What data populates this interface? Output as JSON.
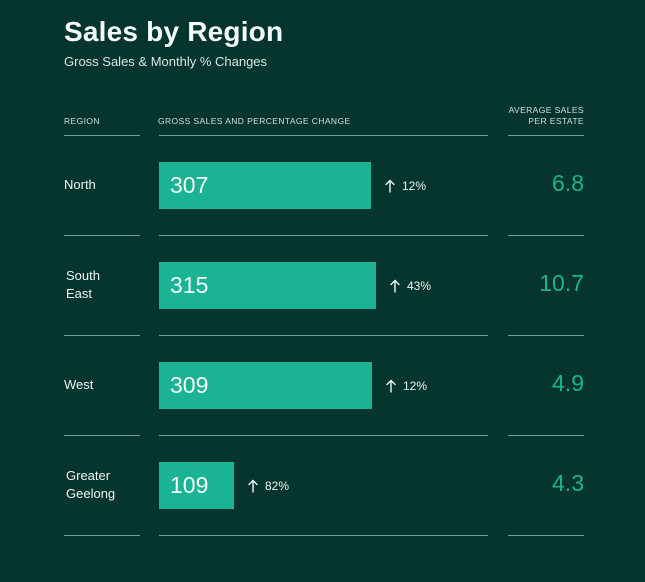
{
  "title": "Sales by Region",
  "subtitle": "Gross Sales & Monthly % Changes",
  "headers": {
    "region": "REGION",
    "gross": "GROSS SALES AND PERCENTAGE CHANGE",
    "avg_line1": "AVERAGE SALES",
    "avg_line2": "PER ESTATE"
  },
  "colors": {
    "background": "#06342f",
    "bar": "#1ab394",
    "accent_text": "#1ab394"
  },
  "icons": {
    "change": "arrow-up-icon"
  },
  "chart_data": {
    "type": "bar",
    "title": "Sales by Region",
    "subtitle": "Gross Sales & Monthly % Changes",
    "orientation": "horizontal",
    "xlim": [
      0,
      400
    ],
    "categories": [
      {
        "line1": "North",
        "line2": ""
      },
      {
        "line1": "South",
        "line2": "East"
      },
      {
        "line1": "West",
        "line2": ""
      },
      {
        "line1": "Greater",
        "line2": "Geelong"
      }
    ],
    "values": [
      307,
      315,
      309,
      109
    ],
    "value_labels": [
      "307",
      "315",
      "309",
      "109"
    ],
    "percent_change": [
      "12%",
      "43%",
      "12%",
      "82%"
    ],
    "average_sales_per_estate": [
      "6.8",
      "10.7",
      "4.9",
      "4.3"
    ]
  }
}
